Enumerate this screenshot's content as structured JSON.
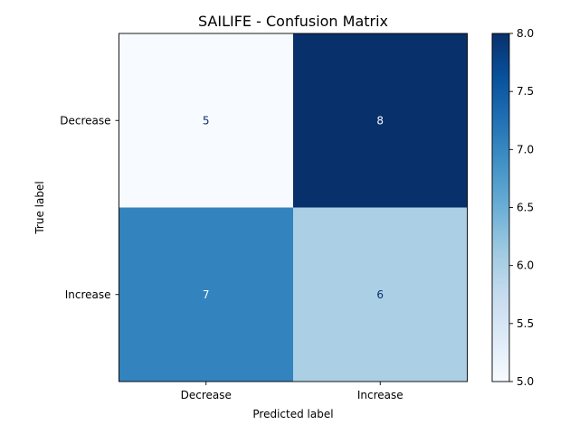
{
  "chart_data": {
    "type": "heatmap",
    "title": "SAILIFE - Confusion Matrix",
    "xlabel": "Predicted label",
    "ylabel": "True label",
    "x_categories": [
      "Decrease",
      "Increase"
    ],
    "y_categories": [
      "Decrease",
      "Increase"
    ],
    "values": [
      [
        5,
        8
      ],
      [
        7,
        6
      ]
    ],
    "colormap": "Blues",
    "colorbar": {
      "min": 5.0,
      "max": 8.0,
      "ticks": [
        "5.0",
        "5.5",
        "6.0",
        "6.5",
        "7.0",
        "7.5",
        "8.0"
      ]
    },
    "colors": {
      "cell_0_0": "#f7fbff",
      "cell_0_1": "#08306b",
      "cell_1_0": "#3383be",
      "cell_1_1": "#abcfe5",
      "text_light": "#f7fbff",
      "text_dark": "#08306b"
    }
  }
}
